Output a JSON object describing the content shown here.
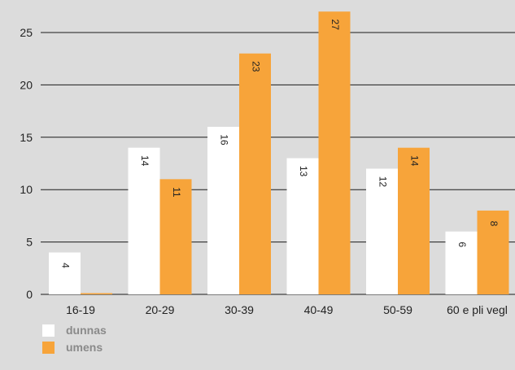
{
  "chart_data": {
    "type": "bar",
    "categories": [
      "16-19",
      "20-29",
      "30-39",
      "40-49",
      "50-59",
      "60 e pli vegl"
    ],
    "series": [
      {
        "name": "dunnas",
        "values": [
          4,
          14,
          16,
          13,
          12,
          6
        ],
        "color": "#ffffff"
      },
      {
        "name": "umens",
        "values": [
          0,
          11,
          23,
          27,
          14,
          8
        ],
        "color": "#f7a43a"
      }
    ],
    "yticks": [
      0,
      5,
      10,
      15,
      20,
      25
    ],
    "ylim": [
      0,
      28
    ],
    "grid": true,
    "legend_position": "bottom-left"
  },
  "colors": {
    "background": "#dcdcdc",
    "gridline": "#1a1a1a",
    "text": "#222222",
    "legend_text": "#8a8a8a"
  }
}
